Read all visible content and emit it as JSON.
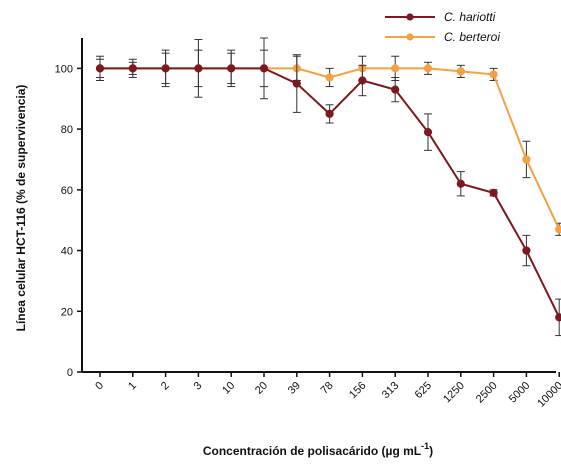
{
  "chart_data": {
    "type": "line",
    "xlabel": "Concentración de polisacárido (µg mL",
    "xlabel_sup": "-1",
    "xlabel_close": ")",
    "ylabel": "Línea celular HCT-116 (% de supervivencia)",
    "categories": [
      "0",
      "1",
      "2",
      "3",
      "10",
      "20",
      "39",
      "78",
      "156",
      "313",
      "625",
      "1250",
      "2500",
      "5000",
      "10000"
    ],
    "ylim": [
      0,
      110
    ],
    "yticks": [
      0,
      20,
      40,
      60,
      80,
      100
    ],
    "grid": false,
    "legend_position": "top-right",
    "series": [
      {
        "name": "C. hariotti",
        "color": "#7a1a1f",
        "values": [
          100,
          100,
          100,
          100,
          100,
          100,
          95,
          85,
          96,
          93,
          79,
          62,
          59,
          40,
          18
        ],
        "errors": [
          4,
          3,
          6,
          9.5,
          6,
          10,
          9.5,
          3,
          5,
          4,
          6,
          4,
          1,
          5,
          6
        ]
      },
      {
        "name": "C. berteroi",
        "color": "#f5a043",
        "values": [
          100,
          100,
          100,
          100,
          100,
          100,
          100,
          97,
          100,
          100,
          100,
          99,
          98,
          70,
          47
        ],
        "errors": [
          3,
          2,
          5,
          6,
          5,
          6,
          4,
          3,
          4,
          4,
          2,
          2,
          2,
          6,
          2
        ]
      }
    ]
  }
}
